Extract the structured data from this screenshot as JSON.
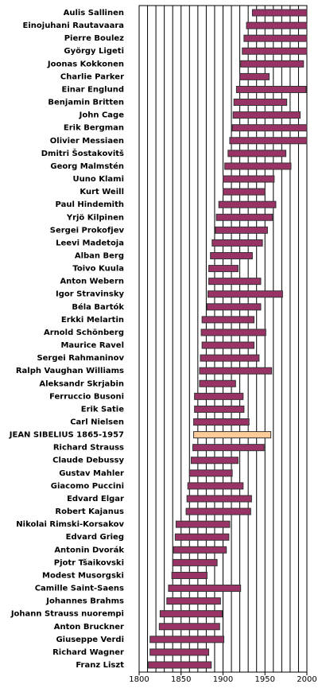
{
  "chart_data": {
    "type": "range-bar",
    "categories": [
      "Aulis Sallinen",
      "Einojuhani Rautavaara",
      "Pierre Boulez",
      "György Ligeti",
      "Joonas Kokkonen",
      "Charlie Parker",
      "Einar Englund",
      "Benjamin Britten",
      "John Cage",
      "Erik Bergman",
      "Olivier Messiaen",
      "Dmitri Šostakovitš",
      "Georg Malmstén",
      "Uuno Klami",
      "Kurt Weill",
      "Paul Hindemith",
      "Yrjö Kilpinen",
      "Sergei Prokofjev",
      "Leevi Madetoja",
      "Alban Berg",
      "Toivo Kuula",
      "Anton Webern",
      "Igor Stravinsky",
      "Béla Bartók",
      "Erkki Melartin",
      "Arnold Schönberg",
      "Maurice Ravel",
      "Sergei Rahmaninov",
      "Ralph Vaughan Williams",
      "Aleksandr Skrjabin",
      "Ferruccio Busoni",
      "Erik Satie",
      "Carl Nielsen",
      "JEAN SIBELIUS 1865-1957",
      "Richard Strauss",
      "Claude Debussy",
      "Gustav Mahler",
      "Giacomo Puccini",
      "Edvard Elgar",
      "Robert Kajanus",
      "Nikolai Rimski-Korsakov",
      "Edvard Grieg",
      "Antonin Dvorák",
      "Pjotr Tšaikovski",
      "Modest Musorgski",
      "Camille Saint-Saens",
      "Johannes Brahms",
      "Johann Strauss nuorempi",
      "Anton Bruckner",
      "Giuseppe Verdi",
      "Richard Wagner",
      "Franz Liszt"
    ],
    "start": [
      1935,
      1928,
      1925,
      1923,
      1921,
      1920,
      1916,
      1913,
      1912,
      1911,
      1908,
      1906,
      1902,
      1900,
      1900,
      1895,
      1892,
      1891,
      1887,
      1885,
      1883,
      1883,
      1882,
      1881,
      1875,
      1874,
      1875,
      1873,
      1872,
      1872,
      1866,
      1866,
      1865,
      1865,
      1864,
      1862,
      1860,
      1858,
      1857,
      1856,
      1844,
      1843,
      1841,
      1840,
      1839,
      1835,
      1833,
      1825,
      1824,
      1813,
      1813,
      1811
    ],
    "end": [
      2000,
      2000,
      2000,
      2000,
      1996,
      1955,
      1999,
      1976,
      1992,
      2000,
      2000,
      1975,
      1981,
      1961,
      1950,
      1963,
      1959,
      1953,
      1947,
      1935,
      1918,
      1945,
      1971,
      1945,
      1937,
      1951,
      1937,
      1943,
      1958,
      1915,
      1924,
      1925,
      1931,
      1957,
      1949,
      1918,
      1911,
      1924,
      1934,
      1933,
      1908,
      1907,
      1904,
      1893,
      1881,
      1921,
      1897,
      1899,
      1896,
      1901,
      1883,
      1886
    ],
    "colors": [
      "#993366",
      "#993366",
      "#993366",
      "#993366",
      "#993366",
      "#993366",
      "#993366",
      "#993366",
      "#993366",
      "#993366",
      "#993366",
      "#993366",
      "#993366",
      "#993366",
      "#993366",
      "#993366",
      "#993366",
      "#993366",
      "#993366",
      "#993366",
      "#993366",
      "#993366",
      "#993366",
      "#993366",
      "#993366",
      "#993366",
      "#993366",
      "#993366",
      "#993366",
      "#993366",
      "#993366",
      "#993366",
      "#993366",
      "#ffcc99",
      "#993366",
      "#993366",
      "#993366",
      "#993366",
      "#993366",
      "#993366",
      "#993366",
      "#993366",
      "#993366",
      "#993366",
      "#993366",
      "#993366",
      "#993366",
      "#993366",
      "#993366",
      "#993366",
      "#993366",
      "#993366"
    ],
    "xlim": [
      1800,
      2000
    ],
    "xticks": [
      1800,
      1850,
      1900,
      1950,
      2000
    ],
    "xgrid": [
      1800,
      1810,
      1820,
      1830,
      1840,
      1850,
      1860,
      1870,
      1880,
      1890,
      1900,
      1910,
      1920,
      1930,
      1940,
      1950,
      1960,
      1970,
      1980,
      1990,
      2000
    ]
  }
}
